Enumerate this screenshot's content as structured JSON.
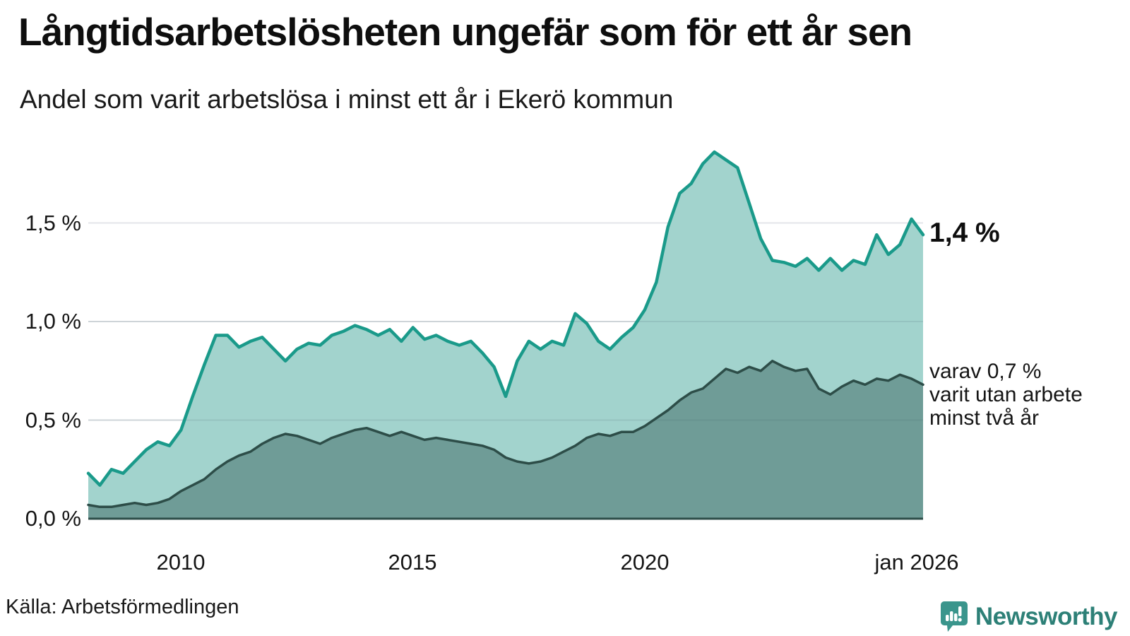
{
  "title": "Långtidsarbetslösheten ungefär som för ett år sen",
  "subtitle": "Andel som varit arbetslösa i minst ett år i Ekerö kommun",
  "source": "Källa: Arbetsförmedlingen",
  "brand": {
    "name": "Newsworthy",
    "icon": "speech-bubble-bar-chart-icon",
    "icon_color": "#3a958c",
    "text_color": "#2d8077"
  },
  "annotations": {
    "end_value_label": "1,4 %",
    "secondary_line1": "varav 0,7 %",
    "secondary_line2": "varit utan arbete",
    "secondary_line3": "minst två år"
  },
  "axes": {
    "y_ticks": {
      "t15": "1,5 %",
      "t10": "1,0 %",
      "t05": "0,5 %",
      "t00": "0,0 %"
    },
    "x_ticks": {
      "x2010": "2010",
      "x2015": "2015",
      "x2020": "2020",
      "x2026": "jan 2026"
    }
  },
  "colors": {
    "primary_line": "#1a9a8a",
    "primary_fill": "#a2d3cd",
    "secondary_line": "#2d4d48",
    "secondary_fill": "#6f9c97",
    "gridline": "#e3e6e9",
    "background": "#ffffff"
  },
  "chart_data": {
    "type": "area",
    "title": "Långtidsarbetslösheten ungefär som för ett år sen",
    "subtitle": "Andel som varit arbetslösa i minst ett år i Ekerö kommun",
    "unit": "%",
    "x_start": 2008.0,
    "x_end": 2026.0,
    "x_step": 0.25,
    "x_tick_labels": [
      "2010",
      "2015",
      "2020",
      "jan 2026"
    ],
    "x_tick_values": [
      2010,
      2015,
      2020,
      2026
    ],
    "y_tick_values": [
      0.0,
      0.5,
      1.0,
      1.5
    ],
    "ylim": [
      0,
      1.95
    ],
    "grid": true,
    "legend_position": "right-annotations",
    "series": [
      {
        "name": "Andel som varit arbetslösa i minst ett år",
        "end_value": 1.4,
        "end_label": "1,4 %",
        "line_color": "#1a9a8a",
        "fill_color": "#a2d3cd",
        "values": [
          0.23,
          0.17,
          0.25,
          0.23,
          0.29,
          0.35,
          0.39,
          0.37,
          0.45,
          0.62,
          0.78,
          0.93,
          0.93,
          0.87,
          0.9,
          0.92,
          0.86,
          0.8,
          0.86,
          0.89,
          0.88,
          0.93,
          0.95,
          0.98,
          0.96,
          0.93,
          0.96,
          0.9,
          0.97,
          0.91,
          0.93,
          0.9,
          0.88,
          0.9,
          0.84,
          0.77,
          0.62,
          0.8,
          0.9,
          0.86,
          0.9,
          0.88,
          1.04,
          0.99,
          0.9,
          0.86,
          0.92,
          0.97,
          1.06,
          1.2,
          1.48,
          1.65,
          1.7,
          1.8,
          1.86,
          1.82,
          1.78,
          1.6,
          1.42,
          1.31,
          1.3,
          1.28,
          1.32,
          1.26,
          1.32,
          1.26,
          1.31,
          1.29,
          1.44,
          1.34,
          1.39,
          1.52,
          1.44
        ]
      },
      {
        "name": "varav utan arbete minst två år",
        "end_value": 0.7,
        "end_label": "0,7 %",
        "line_color": "#2d4d48",
        "fill_color": "#6f9c97",
        "values": [
          0.07,
          0.06,
          0.06,
          0.07,
          0.08,
          0.07,
          0.08,
          0.1,
          0.14,
          0.17,
          0.2,
          0.25,
          0.29,
          0.32,
          0.34,
          0.38,
          0.41,
          0.43,
          0.42,
          0.4,
          0.38,
          0.41,
          0.43,
          0.45,
          0.46,
          0.44,
          0.42,
          0.44,
          0.42,
          0.4,
          0.41,
          0.4,
          0.39,
          0.38,
          0.37,
          0.35,
          0.31,
          0.29,
          0.28,
          0.29,
          0.31,
          0.34,
          0.37,
          0.41,
          0.43,
          0.42,
          0.44,
          0.44,
          0.47,
          0.51,
          0.55,
          0.6,
          0.64,
          0.66,
          0.71,
          0.76,
          0.74,
          0.77,
          0.75,
          0.8,
          0.77,
          0.75,
          0.76,
          0.66,
          0.63,
          0.67,
          0.7,
          0.68,
          0.71,
          0.7,
          0.73,
          0.71,
          0.68
        ]
      }
    ]
  }
}
